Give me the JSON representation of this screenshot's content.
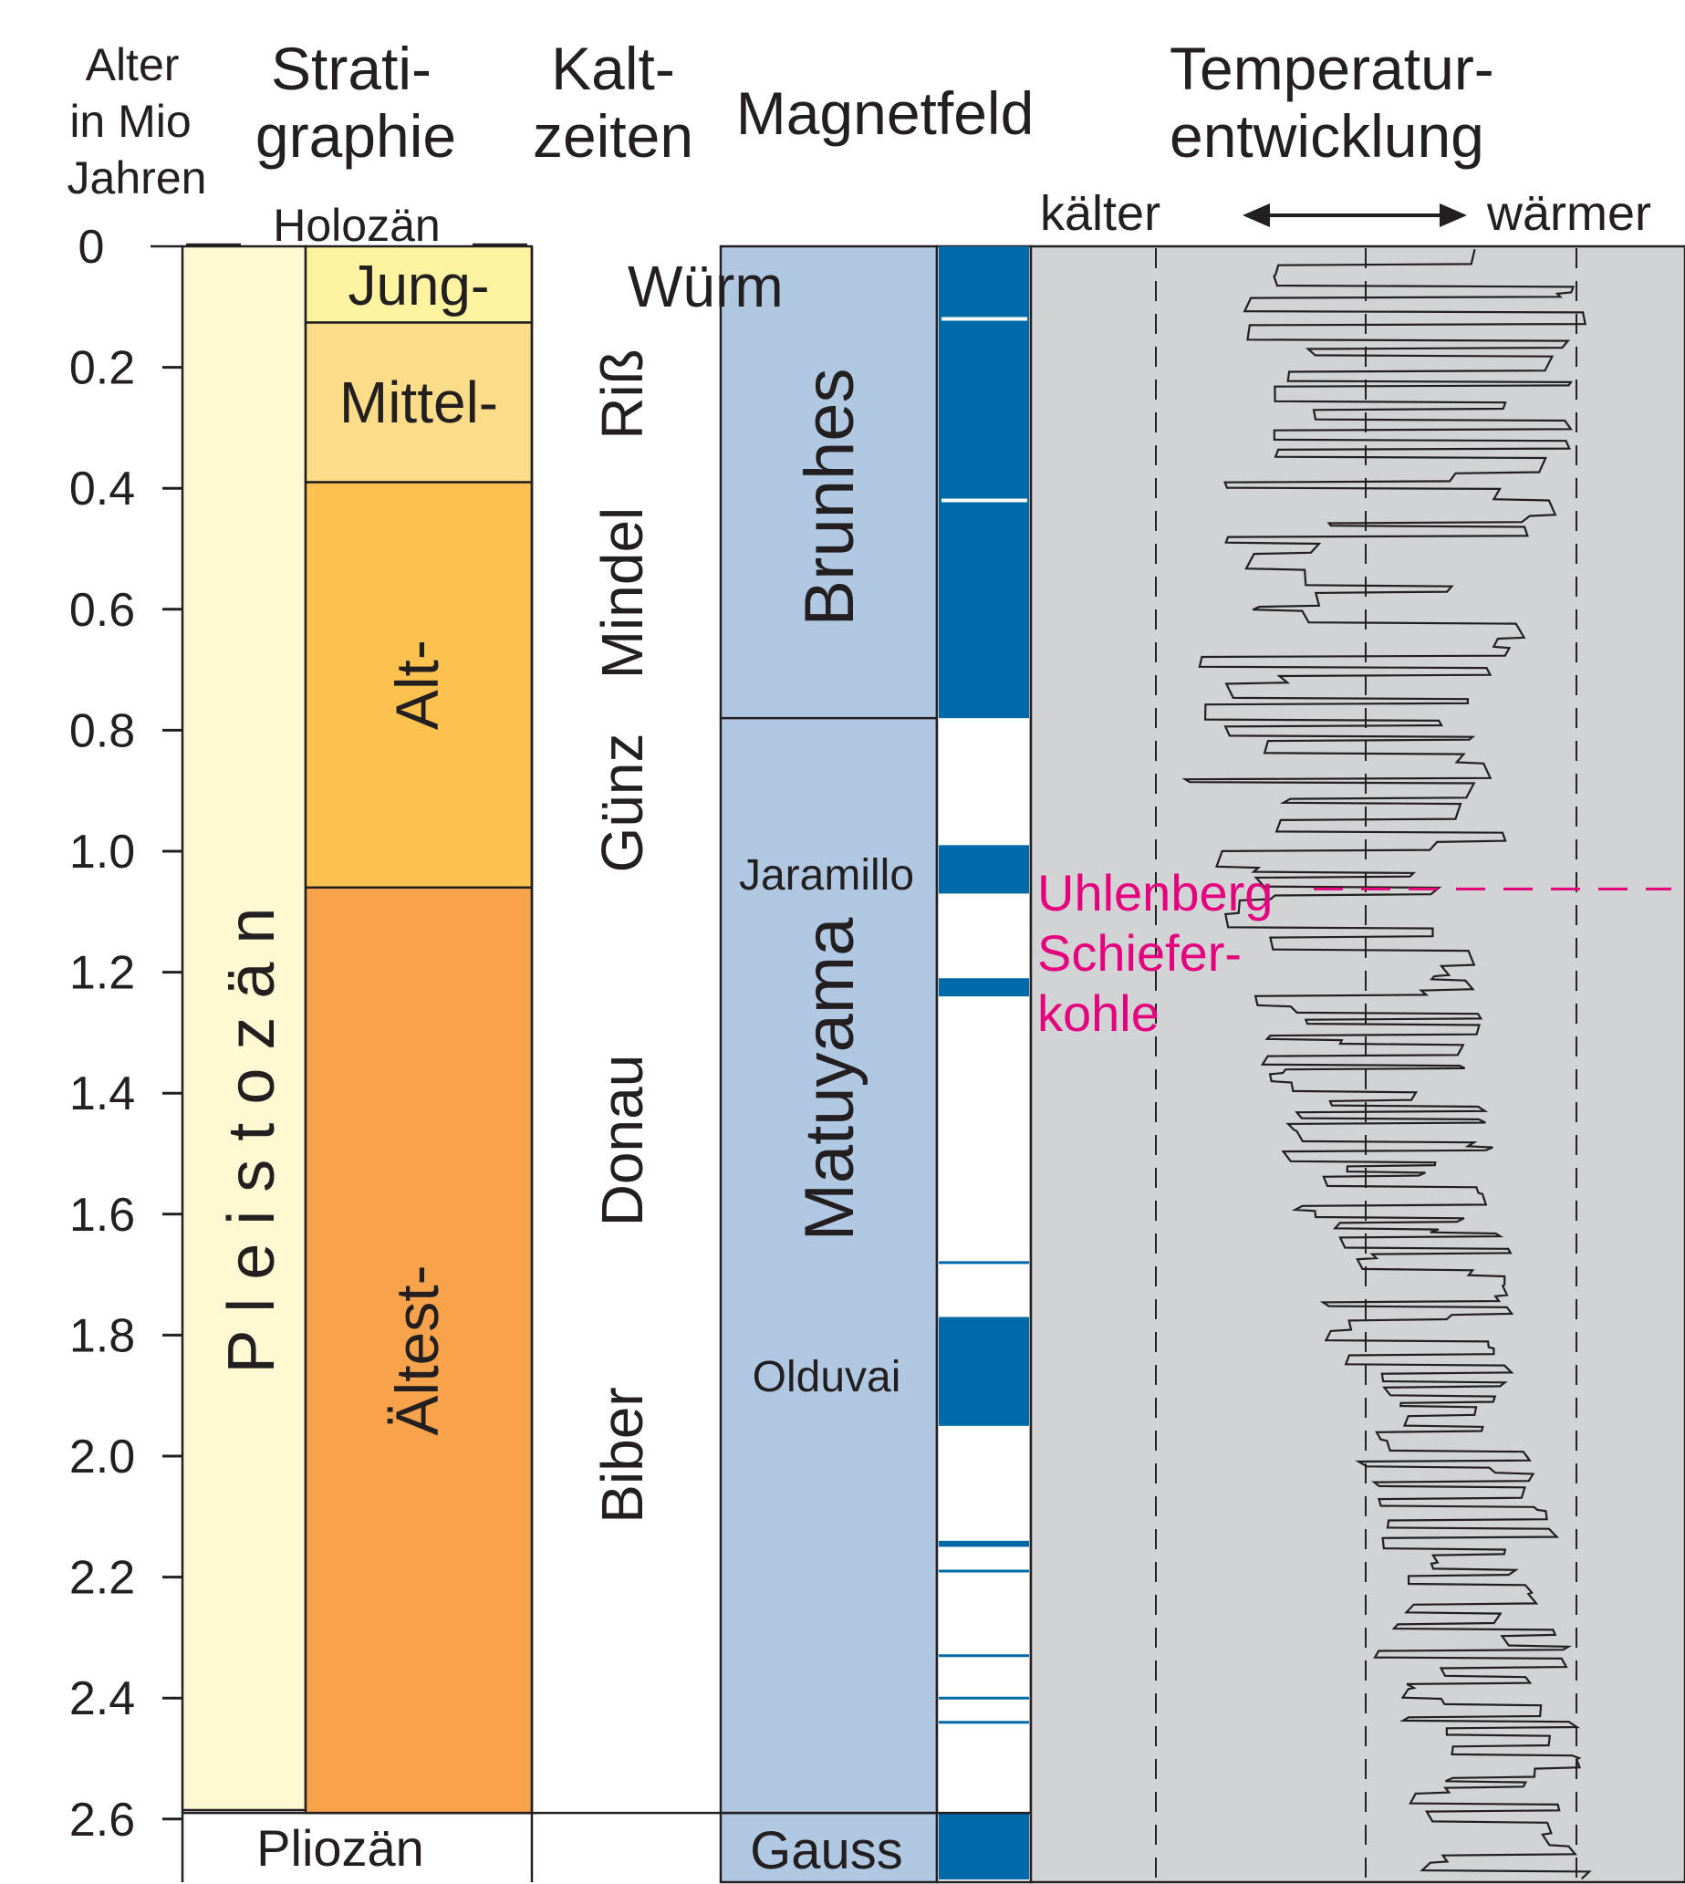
{
  "headers": {
    "age": [
      "Alter",
      "in Mio",
      "Jahren"
    ],
    "strat": [
      "Strati-",
      "graphie"
    ],
    "cold": [
      "Kalt-",
      "zeiten"
    ],
    "mag": "Magnetfeld",
    "temp": [
      "Temperatur-",
      "entwicklung"
    ],
    "colder": "kälter",
    "warmer": "wärmer"
  },
  "age_axis": {
    "ticks": [
      "0",
      "0.2",
      "0.4",
      "0.6",
      "0.8",
      "1.0",
      "1.2",
      "1.4",
      "1.6",
      "1.8",
      "2.0",
      "2.2",
      "2.4",
      "2.6"
    ],
    "max": 2.7
  },
  "epochs": {
    "holocene": "Holozän",
    "pleistocene": "P l e i s t o z ä n",
    "pliocene": "Pliozän"
  },
  "stages": [
    {
      "label": "Jung-",
      "from": 0.0,
      "to": 0.126,
      "color": "#fdf3a0"
    },
    {
      "label": "Mittel-",
      "from": 0.126,
      "to": 0.39,
      "color": "#fbdc88"
    },
    {
      "label": "Alt-",
      "from": 0.39,
      "to": 1.06,
      "color": "#fbc24f"
    },
    {
      "label": "Ältest-",
      "from": 1.06,
      "to": 2.59,
      "color": "#f6a34b"
    }
  ],
  "cold_periods": [
    "Würm",
    "Riß",
    "Mindel",
    "Günz",
    "Donau",
    "Biber"
  ],
  "chrons": [
    {
      "label": "Brunhes",
      "from": 0.0,
      "to": 0.78
    },
    {
      "label": "Matuyama",
      "from": 0.78,
      "to": 2.59
    },
    {
      "label": "Gauss",
      "from": 2.59,
      "to": 2.7
    }
  ],
  "subchrons": {
    "jaramillo": "Jaramillo",
    "olduvai": "Olduvai"
  },
  "normal_polarity": [
    {
      "from": 0.0,
      "to": 0.78
    },
    {
      "from": 0.99,
      "to": 1.07
    },
    {
      "from": 1.21,
      "to": 1.24
    },
    {
      "from": 1.77,
      "to": 1.95
    },
    {
      "from": 2.14,
      "to": 2.15
    },
    {
      "from": 2.59,
      "to": 2.7
    }
  ],
  "polarity_lines": [
    0.12,
    0.42,
    1.68,
    2.19,
    2.33,
    2.4,
    2.44
  ],
  "temperature": {
    "seed": 7,
    "trend": [
      [
        0.0,
        0.6
      ],
      [
        0.4,
        0.55
      ],
      [
        0.8,
        0.45
      ],
      [
        1.2,
        0.5
      ],
      [
        1.6,
        0.55
      ],
      [
        2.0,
        0.65
      ],
      [
        2.6,
        0.72
      ],
      [
        2.7,
        0.75
      ]
    ],
    "amplitude": [
      [
        0.0,
        0.22
      ],
      [
        0.9,
        0.2
      ],
      [
        1.3,
        0.14
      ],
      [
        2.0,
        0.12
      ],
      [
        2.7,
        0.12
      ]
    ]
  },
  "marker": {
    "label": [
      "Uhlenberg",
      "Schiefer-",
      "kohle"
    ],
    "age": 1.07,
    "color": "#e5007e"
  },
  "colors": {
    "magnet_bg": "#b1c8e2",
    "polarity": "#0069a8",
    "temp_bg": "#d1d3d4",
    "pleistocene": "#fef9d3"
  }
}
